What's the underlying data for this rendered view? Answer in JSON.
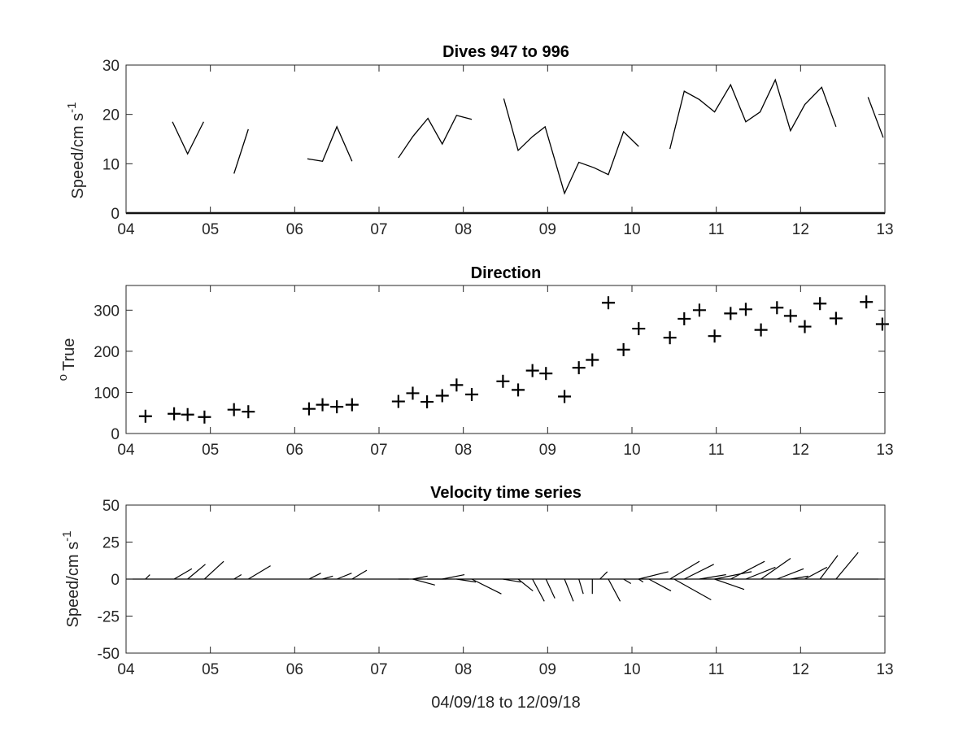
{
  "figure": {
    "xlabel": "04/09/18 to 12/09/18"
  },
  "chart_data": [
    {
      "type": "line",
      "title": "Dives 947 to 996",
      "ylabel": "Speed/cm s",
      "ylabel_sup": "-1",
      "xlim": [
        4,
        13
      ],
      "ylim": [
        0,
        30
      ],
      "xticks": [
        4,
        5,
        6,
        7,
        8,
        9,
        10,
        11,
        12,
        13
      ],
      "xtick_labels": [
        "04",
        "05",
        "06",
        "07",
        "08",
        "09",
        "10",
        "11",
        "12",
        "13"
      ],
      "yticks": [
        0,
        10,
        20,
        30
      ],
      "ytick_labels": [
        "0",
        "10",
        "20",
        "30"
      ],
      "grid": false,
      "series": [
        {
          "x": [
            4.55,
            4.73,
            4.92
          ],
          "y": [
            18.5,
            12,
            18.5
          ]
        },
        {
          "x": [
            5.28,
            5.45
          ],
          "y": [
            8,
            17
          ]
        },
        {
          "x": [
            6.15,
            6.33,
            6.5,
            6.68
          ],
          "y": [
            11,
            10.5,
            17.5,
            10.5
          ]
        },
        {
          "x": [
            7.23,
            7.4,
            7.58,
            7.75,
            7.92,
            8.1
          ],
          "y": [
            11.2,
            15.5,
            19.2,
            14,
            19.8,
            19
          ]
        },
        {
          "x": [
            8.48,
            8.65,
            8.82,
            8.97,
            9.2,
            9.37,
            9.55,
            9.72,
            9.9,
            10.08
          ],
          "y": [
            23.2,
            12.7,
            15.5,
            17.5,
            4,
            10.3,
            9.2,
            7.8,
            16.5,
            13.5
          ]
        },
        {
          "x": [
            10.45,
            10.62,
            10.8,
            10.98,
            11.17,
            11.35,
            11.52,
            11.7,
            11.88,
            12.05,
            12.25,
            12.42
          ],
          "y": [
            13,
            24.7,
            23,
            20.5,
            26,
            18.5,
            20.5,
            27,
            16.7,
            22,
            25.5,
            17.5
          ]
        },
        {
          "x": [
            12.8,
            12.98
          ],
          "y": [
            23.5,
            15.3
          ]
        }
      ],
      "baseline_y": 0
    },
    {
      "type": "scatter",
      "title": "Direction",
      "ylabel": "True",
      "ylabel_sup": "o",
      "xlim": [
        4,
        13
      ],
      "ylim": [
        0,
        360
      ],
      "xticks": [
        4,
        5,
        6,
        7,
        8,
        9,
        10,
        11,
        12,
        13
      ],
      "xtick_labels": [
        "04",
        "05",
        "06",
        "07",
        "08",
        "09",
        "10",
        "11",
        "12",
        "13"
      ],
      "yticks": [
        0,
        100,
        200,
        300
      ],
      "ytick_labels": [
        "0",
        "100",
        "200",
        "300"
      ],
      "marker": "+",
      "grid": false,
      "x": [
        4.23,
        4.57,
        4.73,
        4.93,
        5.28,
        5.45,
        6.17,
        6.33,
        6.5,
        6.68,
        7.23,
        7.4,
        7.57,
        7.75,
        7.92,
        8.1,
        8.47,
        8.65,
        8.82,
        8.98,
        9.2,
        9.37,
        9.53,
        9.72,
        9.9,
        10.08,
        10.45,
        10.62,
        10.8,
        10.98,
        11.17,
        11.35,
        11.53,
        11.72,
        11.88,
        12.05,
        12.23,
        12.42,
        12.78,
        12.97
      ],
      "y": [
        42,
        48,
        46,
        40,
        58,
        53,
        60,
        70,
        65,
        70,
        78,
        98,
        77,
        92,
        118,
        95,
        127,
        106,
        153,
        146,
        90,
        160,
        179,
        318,
        204,
        255,
        233,
        279,
        300,
        237,
        292,
        302,
        252,
        306,
        286,
        260,
        316,
        280,
        320,
        266
      ]
    },
    {
      "type": "quiver",
      "title": "Velocity time series",
      "ylabel": "Speed/cm s",
      "ylabel_sup": "-1",
      "xlim": [
        4,
        13
      ],
      "ylim": [
        -50,
        50
      ],
      "xticks": [
        4,
        5,
        6,
        7,
        8,
        9,
        10,
        11,
        12,
        13
      ],
      "xtick_labels": [
        "04",
        "05",
        "06",
        "07",
        "08",
        "09",
        "10",
        "11",
        "12",
        "13"
      ],
      "yticks": [
        50,
        25,
        0,
        -25,
        -50
      ],
      "ytick_labels": [
        "50",
        "25",
        "0",
        "-25",
        "-50"
      ],
      "grid": false,
      "baseline_y": 0,
      "vectors": [
        {
          "x": 4.23,
          "u": 3,
          "v": 3
        },
        {
          "x": 4.57,
          "u": 12,
          "v": 7
        },
        {
          "x": 4.73,
          "u": 12,
          "v": 10
        },
        {
          "x": 4.93,
          "u": 13,
          "v": 12
        },
        {
          "x": 5.28,
          "u": 5,
          "v": 3
        },
        {
          "x": 5.45,
          "u": 15,
          "v": 9
        },
        {
          "x": 6.17,
          "u": 8,
          "v": 4
        },
        {
          "x": 6.33,
          "u": 7,
          "v": 2
        },
        {
          "x": 6.5,
          "u": 10,
          "v": 4
        },
        {
          "x": 6.68,
          "u": 10,
          "v": 6
        },
        {
          "x": 7.23,
          "u": 7,
          "v": 0
        },
        {
          "x": 7.4,
          "u": 10,
          "v": 2
        },
        {
          "x": 7.4,
          "u": 15,
          "v": -4
        },
        {
          "x": 7.57,
          "u": 13,
          "v": 0
        },
        {
          "x": 7.75,
          "u": 15,
          "v": 3
        },
        {
          "x": 7.92,
          "u": 13,
          "v": -2
        },
        {
          "x": 8.1,
          "u": 20,
          "v": -10
        },
        {
          "x": 8.47,
          "u": 12,
          "v": -2
        },
        {
          "x": 8.65,
          "u": 10,
          "v": -8
        },
        {
          "x": 8.82,
          "u": 8,
          "v": -15
        },
        {
          "x": 8.98,
          "u": 6,
          "v": -13
        },
        {
          "x": 9.2,
          "u": 6,
          "v": -15
        },
        {
          "x": 9.37,
          "u": 3,
          "v": -10
        },
        {
          "x": 9.53,
          "u": 0,
          "v": -10
        },
        {
          "x": 9.62,
          "u": 5,
          "v": 5
        },
        {
          "x": 9.72,
          "u": 8,
          "v": -15
        },
        {
          "x": 9.9,
          "u": 5,
          "v": -3
        },
        {
          "x": 10.08,
          "u": 3,
          "v": -2
        },
        {
          "x": 10.08,
          "u": 20,
          "v": 5
        },
        {
          "x": 10.2,
          "u": 15,
          "v": -8
        },
        {
          "x": 10.45,
          "u": 20,
          "v": 12
        },
        {
          "x": 10.62,
          "u": 20,
          "v": 10
        },
        {
          "x": 10.8,
          "u": 18,
          "v": 3
        },
        {
          "x": 10.5,
          "u": 25,
          "v": -14
        },
        {
          "x": 10.98,
          "u": 25,
          "v": 5
        },
        {
          "x": 11.17,
          "u": 23,
          "v": 12
        },
        {
          "x": 11.35,
          "u": 20,
          "v": 8
        },
        {
          "x": 11.53,
          "u": 20,
          "v": 14
        },
        {
          "x": 11.72,
          "u": 18,
          "v": 7
        },
        {
          "x": 10.98,
          "u": 20,
          "v": -7
        },
        {
          "x": 11.88,
          "u": 12,
          "v": 2
        },
        {
          "x": 12.05,
          "u": 15,
          "v": 8
        },
        {
          "x": 12.23,
          "u": 12,
          "v": 16
        },
        {
          "x": 12.42,
          "u": 15,
          "v": 18
        }
      ]
    }
  ]
}
